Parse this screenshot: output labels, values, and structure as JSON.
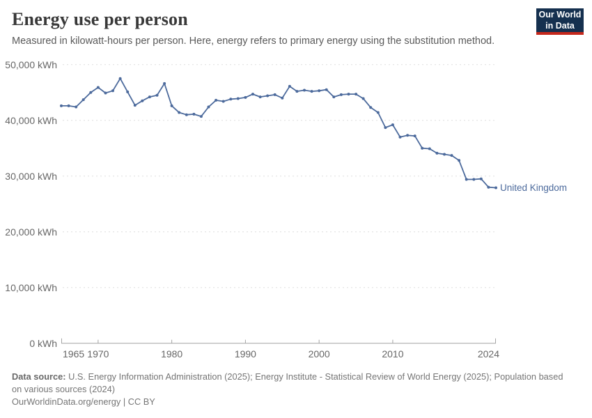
{
  "header": {
    "title": "Energy use per person",
    "subtitle": "Measured in kilowatt-hours per person. Here, energy refers to primary energy using the substitution method.",
    "logo": {
      "line1": "Our World",
      "line2": "in Data"
    }
  },
  "chart_data": {
    "type": "line",
    "title": "Energy use per person",
    "unit": "kWh",
    "grid": "horizontal-dashed",
    "legend_position": "end-of-line-label",
    "ylim": [
      0,
      50000
    ],
    "y_ticks": [
      0,
      10000,
      20000,
      30000,
      40000,
      50000
    ],
    "y_tick_labels": [
      "0 kWh",
      "10,000 kWh",
      "20,000 kWh",
      "30,000 kWh",
      "40,000 kWh",
      "50,000 kWh"
    ],
    "x_ticks": [
      1965,
      1970,
      1980,
      1990,
      2000,
      2010,
      2024
    ],
    "x_tick_labels": [
      "1965",
      "1970",
      "1980",
      "1990",
      "2000",
      "2010",
      "2024"
    ],
    "x": [
      1965,
      1966,
      1967,
      1968,
      1969,
      1970,
      1971,
      1972,
      1973,
      1974,
      1975,
      1976,
      1977,
      1978,
      1979,
      1980,
      1981,
      1982,
      1983,
      1984,
      1985,
      1986,
      1987,
      1988,
      1989,
      1990,
      1991,
      1992,
      1993,
      1994,
      1995,
      1996,
      1997,
      1998,
      1999,
      2000,
      2001,
      2002,
      2003,
      2004,
      2005,
      2006,
      2007,
      2008,
      2009,
      2010,
      2011,
      2012,
      2013,
      2014,
      2015,
      2016,
      2017,
      2018,
      2019,
      2020,
      2021,
      2022,
      2023,
      2024
    ],
    "series": [
      {
        "name": "United Kingdom",
        "color": "#4C6A9C",
        "values": [
          42600,
          42600,
          42400,
          43700,
          45000,
          45900,
          44900,
          45300,
          47500,
          45100,
          42700,
          43500,
          44200,
          44500,
          46600,
          42600,
          41400,
          41000,
          41100,
          40700,
          42400,
          43600,
          43400,
          43800,
          43900,
          44100,
          44700,
          44200,
          44400,
          44600,
          44000,
          46100,
          45200,
          45400,
          45200,
          45300,
          45500,
          44200,
          44600,
          44700,
          44700,
          43900,
          42300,
          41400,
          38700,
          39200,
          37000,
          37300,
          37200,
          35000,
          34900,
          34100,
          33900,
          33700,
          32800,
          29400,
          29400,
          29500,
          28000,
          27900
        ]
      }
    ]
  },
  "colors": {
    "gridline": "#dedede",
    "axis": "#a3a3a3",
    "line": "#4C6A9C",
    "logo_bg": "#15304f",
    "logo_red": "#c5281c"
  },
  "footer": {
    "data_source_label": "Data source:",
    "data_source_text": "U.S. Energy Information Administration (2025); Energy Institute - Statistical Review of World Energy (2025); Population based on various sources (2024)",
    "link_text": "OurWorldinData.org/energy",
    "separator": "|",
    "license": "CC BY"
  }
}
